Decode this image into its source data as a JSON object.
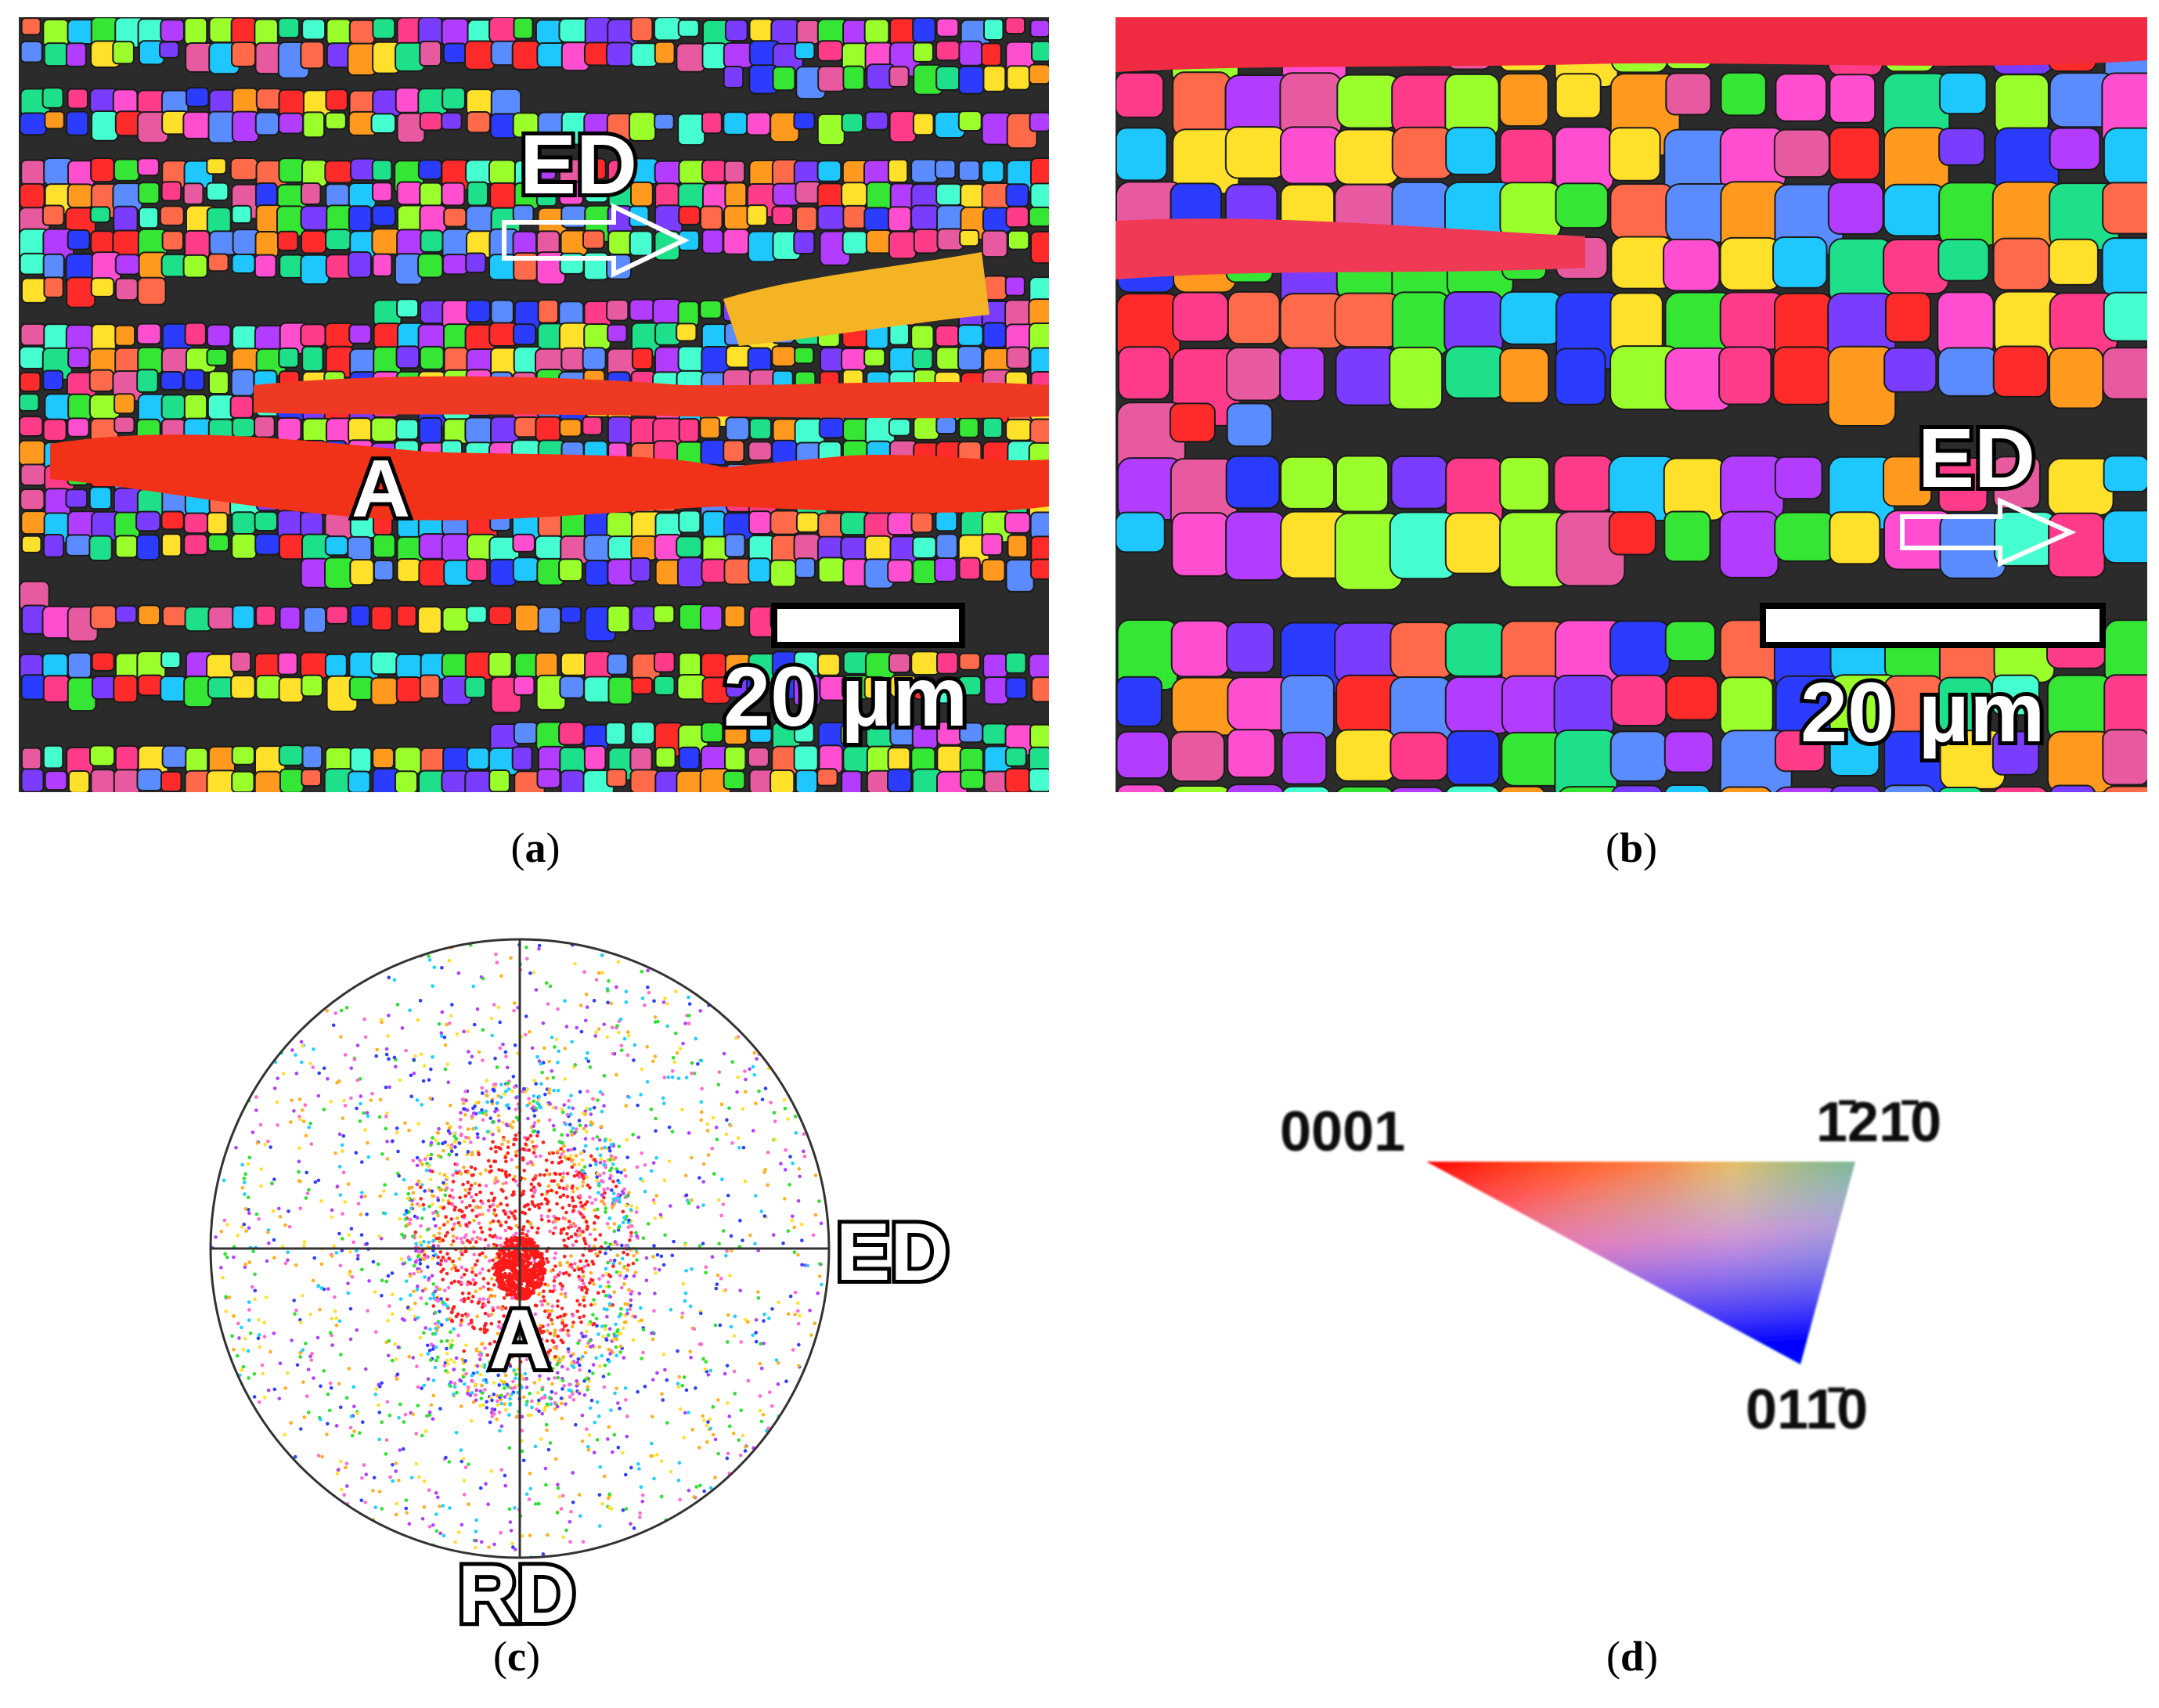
{
  "figure": {
    "panel_a": {
      "caption_letter": "a",
      "direction_label": "ED",
      "grain_label": "A",
      "scale_label": "20 μm"
    },
    "panel_b": {
      "caption_letter": "b",
      "direction_label": "ED",
      "scale_label": "20 μm"
    },
    "panel_c": {
      "caption_letter": "c",
      "axis_right_label": "ED",
      "axis_bottom_label": "RD",
      "cluster_label": "A"
    },
    "panel_d": {
      "caption_letter": "d",
      "corner_left": "0001",
      "corner_top_right": "1̄21̄0",
      "corner_bottom": "011̄0"
    }
  },
  "colors": {
    "grain_boundary": "#1a1a1a",
    "band_dark": "#2b2b2b",
    "red_grain": "#f02a18",
    "palette": [
      "#ff2a2a",
      "#ff3b8a",
      "#b23cff",
      "#7a3cff",
      "#2b3cff",
      "#1ec8ff",
      "#1fe08a",
      "#35e635",
      "#9aff2a",
      "#ffe02a",
      "#ff9a1e",
      "#ff6a4a",
      "#ff4fd0",
      "#e85aa0",
      "#46ffd0",
      "#5a8cff"
    ]
  }
}
